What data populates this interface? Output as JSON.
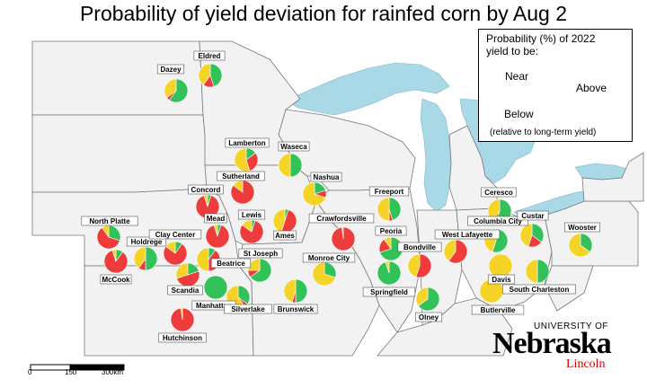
{
  "title": "Probability of yield deviation for rainfed corn by Aug 2",
  "colors": {
    "below": "#ee3b3b",
    "near": "#f5d327",
    "above": "#33c25a",
    "water": "#a9d8e6",
    "land": "#f2f2f2",
    "border": "#777777"
  },
  "legend": {
    "title_line1": "Probability (%) of 2022",
    "title_line2": "yield to be:",
    "near": "Near",
    "above": "Above",
    "below": "Below",
    "note": "(relative to long-term yield)"
  },
  "scale": {
    "labels": [
      "0",
      "150",
      "300km"
    ]
  },
  "logo": {
    "top": "UNIVERSITY OF",
    "main": "Nebraska",
    "sub": "Lincoln"
  },
  "sites": [
    {
      "name": "Dazey",
      "below": 5,
      "near": 35,
      "above": 60
    },
    {
      "name": "Eldred",
      "below": 15,
      "near": 40,
      "above": 45
    },
    {
      "name": "Lamberton",
      "below": 30,
      "near": 55,
      "above": 15
    },
    {
      "name": "Waseca",
      "below": 0,
      "near": 50,
      "above": 50
    },
    {
      "name": "Sutherland",
      "below": 85,
      "near": 15,
      "above": 0
    },
    {
      "name": "Nashua",
      "below": 10,
      "near": 70,
      "above": 20
    },
    {
      "name": "Concord",
      "below": 90,
      "near": 5,
      "above": 5
    },
    {
      "name": "Freeport",
      "below": 5,
      "near": 50,
      "above": 45
    },
    {
      "name": "Ceresco",
      "below": 5,
      "near": 40,
      "above": 55
    },
    {
      "name": "North Platte",
      "below": 60,
      "near": 10,
      "above": 30
    },
    {
      "name": "Mead",
      "below": 90,
      "near": 5,
      "above": 5
    },
    {
      "name": "Lewis",
      "below": 80,
      "near": 15,
      "above": 5
    },
    {
      "name": "Ames",
      "below": 50,
      "near": 45,
      "above": 5
    },
    {
      "name": "Crawfordsville",
      "below": 98,
      "near": 2,
      "above": 0
    },
    {
      "name": "Columbia City",
      "below": 0,
      "near": 45,
      "above": 55
    },
    {
      "name": "Custar",
      "below": 20,
      "near": 45,
      "above": 35
    },
    {
      "name": "Wooster",
      "below": 0,
      "near": 65,
      "above": 35
    },
    {
      "name": "Holdrege",
      "below": 10,
      "near": 40,
      "above": 50
    },
    {
      "name": "Clay Center",
      "below": 75,
      "near": 15,
      "above": 10
    },
    {
      "name": "McCook",
      "below": 85,
      "near": 5,
      "above": 10
    },
    {
      "name": "Beatrice",
      "below": 40,
      "near": 50,
      "above": 10
    },
    {
      "name": "St Joseph",
      "below": 10,
      "near": 25,
      "above": 65
    },
    {
      "name": "Peoria",
      "below": 20,
      "near": 10,
      "above": 70
    },
    {
      "name": "Bondville",
      "below": 55,
      "near": 45,
      "above": 0
    },
    {
      "name": "West Lafayette",
      "below": 60,
      "near": 40,
      "above": 0
    },
    {
      "name": "Scandia",
      "below": 50,
      "near": 30,
      "above": 20
    },
    {
      "name": "Monroe City",
      "below": 0,
      "near": 70,
      "above": 30
    },
    {
      "name": "Manhattan",
      "below": 0,
      "near": 0,
      "above": 100
    },
    {
      "name": "Silverlake",
      "below": 5,
      "near": 60,
      "above": 35
    },
    {
      "name": "Brunswick",
      "below": 5,
      "near": 45,
      "above": 50
    },
    {
      "name": "Springfield",
      "below": 0,
      "near": 5,
      "above": 95
    },
    {
      "name": "Davis",
      "below": 0,
      "near": 100,
      "above": 0
    },
    {
      "name": "South Charleston",
      "below": 0,
      "near": 50,
      "above": 50
    },
    {
      "name": "Butlerville",
      "below": 0,
      "near": 100,
      "above": 0
    },
    {
      "name": "Olney",
      "below": 0,
      "near": 35,
      "above": 65
    },
    {
      "name": "Hutchinson",
      "below": 98,
      "near": 2,
      "above": 0
    }
  ]
}
